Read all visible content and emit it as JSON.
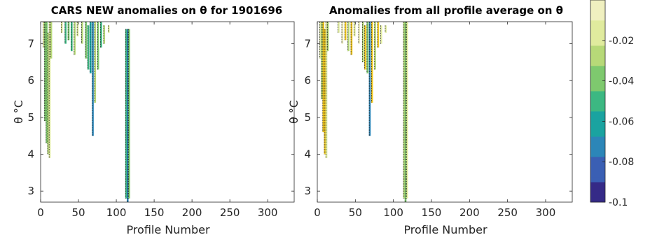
{
  "chart_data": [
    {
      "type": "heatmap",
      "title": "CARS NEW anomalies on θ for 1901696",
      "xlabel": "Profile Number",
      "ylabel": "θ °C",
      "xlim": [
        0,
        335
      ],
      "ylim": [
        2.7,
        7.6
      ],
      "xticks": [
        0,
        50,
        100,
        150,
        200,
        250,
        300
      ],
      "yticks": [
        3,
        4,
        5,
        6,
        7
      ],
      "columns": [
        {
          "x": 4,
          "ymin": 6.9,
          "ymax": 7.6,
          "value": -0.02
        },
        {
          "x": 6,
          "ymin": 4.9,
          "ymax": 7.6,
          "value": -0.04
        },
        {
          "x": 8,
          "ymin": 4.3,
          "ymax": 7.6,
          "value": -0.04
        },
        {
          "x": 10,
          "ymin": 4.0,
          "ymax": 7.3,
          "value": -0.03
        },
        {
          "x": 12,
          "ymin": 3.9,
          "ymax": 7.6,
          "value": -0.02
        },
        {
          "x": 14,
          "ymin": 6.6,
          "ymax": 7.6,
          "value": -0.03
        },
        {
          "x": 28,
          "ymin": 7.3,
          "ymax": 7.6,
          "value": -0.02
        },
        {
          "x": 33,
          "ymin": 7.0,
          "ymax": 7.6,
          "value": -0.05
        },
        {
          "x": 37,
          "ymin": 7.1,
          "ymax": 7.6,
          "value": -0.04
        },
        {
          "x": 41,
          "ymin": 6.8,
          "ymax": 7.6,
          "value": -0.05
        },
        {
          "x": 45,
          "ymin": 6.7,
          "ymax": 7.6,
          "value": -0.03
        },
        {
          "x": 49,
          "ymin": 7.2,
          "ymax": 7.6,
          "value": -0.02
        },
        {
          "x": 55,
          "ymin": 7.0,
          "ymax": 7.6,
          "value": -0.03
        },
        {
          "x": 60,
          "ymin": 6.6,
          "ymax": 7.6,
          "value": -0.04
        },
        {
          "x": 63,
          "ymin": 6.3,
          "ymax": 7.5,
          "value": -0.05
        },
        {
          "x": 66,
          "ymin": 6.2,
          "ymax": 7.6,
          "value": -0.06
        },
        {
          "x": 69,
          "ymin": 4.5,
          "ymax": 7.6,
          "value": -0.07
        },
        {
          "x": 72,
          "ymin": 5.4,
          "ymax": 7.6,
          "value": -0.03
        },
        {
          "x": 76,
          "ymin": 6.3,
          "ymax": 7.6,
          "value": -0.04
        },
        {
          "x": 80,
          "ymin": 6.9,
          "ymax": 7.6,
          "value": -0.05
        },
        {
          "x": 84,
          "ymin": 7.0,
          "ymax": 7.5,
          "value": -0.03
        },
        {
          "x": 90,
          "ymin": 7.3,
          "ymax": 7.5,
          "value": -0.02
        },
        {
          "x": 113,
          "ymin": 2.8,
          "ymax": 7.4,
          "value": -0.05
        },
        {
          "x": 115,
          "ymin": 2.7,
          "ymax": 7.4,
          "value": -0.07
        },
        {
          "x": 117,
          "ymin": 2.8,
          "ymax": 7.4,
          "value": -0.04
        }
      ]
    },
    {
      "type": "heatmap",
      "title": "Anomalies from all profile average on θ",
      "xlabel": "Profile Number",
      "ylabel": "θ °C",
      "xlim": [
        0,
        335
      ],
      "ylim": [
        2.7,
        7.6
      ],
      "xticks": [
        0,
        50,
        100,
        150,
        200,
        250,
        300
      ],
      "yticks": [
        3,
        4,
        5,
        6,
        7
      ],
      "columns": [
        {
          "x": 4,
          "ymin": 6.6,
          "ymax": 7.6,
          "value": -0.02
        },
        {
          "x": 6,
          "ymin": 5.5,
          "ymax": 7.6,
          "value": -0.03
        },
        {
          "x": 8,
          "ymin": 4.6,
          "ymax": 7.6,
          "value": 0.0
        },
        {
          "x": 10,
          "ymin": 4.0,
          "ymax": 7.4,
          "value": 0.0
        },
        {
          "x": 12,
          "ymin": 3.9,
          "ymax": 7.6,
          "value": -0.02
        },
        {
          "x": 14,
          "ymin": 6.8,
          "ymax": 7.6,
          "value": -0.03
        },
        {
          "x": 28,
          "ymin": 7.3,
          "ymax": 7.6,
          "value": -0.02
        },
        {
          "x": 33,
          "ymin": 7.0,
          "ymax": 7.6,
          "value": -0.01
        },
        {
          "x": 37,
          "ymin": 7.1,
          "ymax": 7.6,
          "value": 0.0
        },
        {
          "x": 41,
          "ymin": 6.8,
          "ymax": 7.6,
          "value": -0.03
        },
        {
          "x": 45,
          "ymin": 6.7,
          "ymax": 7.6,
          "value": 0.0
        },
        {
          "x": 49,
          "ymin": 7.2,
          "ymax": 7.6,
          "value": -0.02
        },
        {
          "x": 55,
          "ymin": 7.0,
          "ymax": 7.6,
          "value": -0.01
        },
        {
          "x": 60,
          "ymin": 6.5,
          "ymax": 7.6,
          "value": -0.03
        },
        {
          "x": 63,
          "ymin": 6.3,
          "ymax": 7.5,
          "value": 0.0
        },
        {
          "x": 66,
          "ymin": 6.2,
          "ymax": 7.6,
          "value": -0.04
        },
        {
          "x": 69,
          "ymin": 4.5,
          "ymax": 7.6,
          "value": -0.07
        },
        {
          "x": 72,
          "ymin": 5.4,
          "ymax": 7.6,
          "value": 0.0
        },
        {
          "x": 76,
          "ymin": 6.3,
          "ymax": 7.6,
          "value": -0.03
        },
        {
          "x": 80,
          "ymin": 6.9,
          "ymax": 7.6,
          "value": 0.0
        },
        {
          "x": 84,
          "ymin": 7.0,
          "ymax": 7.5,
          "value": -0.02
        },
        {
          "x": 90,
          "ymin": 7.3,
          "ymax": 7.5,
          "value": -0.02
        },
        {
          "x": 114,
          "ymin": 2.8,
          "ymax": 7.6,
          "value": -0.03
        },
        {
          "x": 116,
          "ymin": 2.7,
          "ymax": 7.6,
          "value": -0.04
        },
        {
          "x": 118,
          "ymin": 2.8,
          "ymax": 7.6,
          "value": -0.02
        }
      ]
    }
  ],
  "colorbar": {
    "range": [
      -0.1,
      0.0
    ],
    "ticks": [
      -0.02,
      -0.04,
      -0.06,
      -0.08,
      -0.1
    ],
    "tick_labels": [
      "-0.02",
      "-0.04",
      "-0.06",
      "-0.08",
      "-0.1"
    ],
    "colors": [
      "#352a87",
      "#3a5fb4",
      "#2c86b8",
      "#1aa3a0",
      "#3cb882",
      "#7ec96e",
      "#b7d978",
      "#e0eb9e",
      "#f0f0c0"
    ],
    "positive_color": "#f2c81e"
  }
}
